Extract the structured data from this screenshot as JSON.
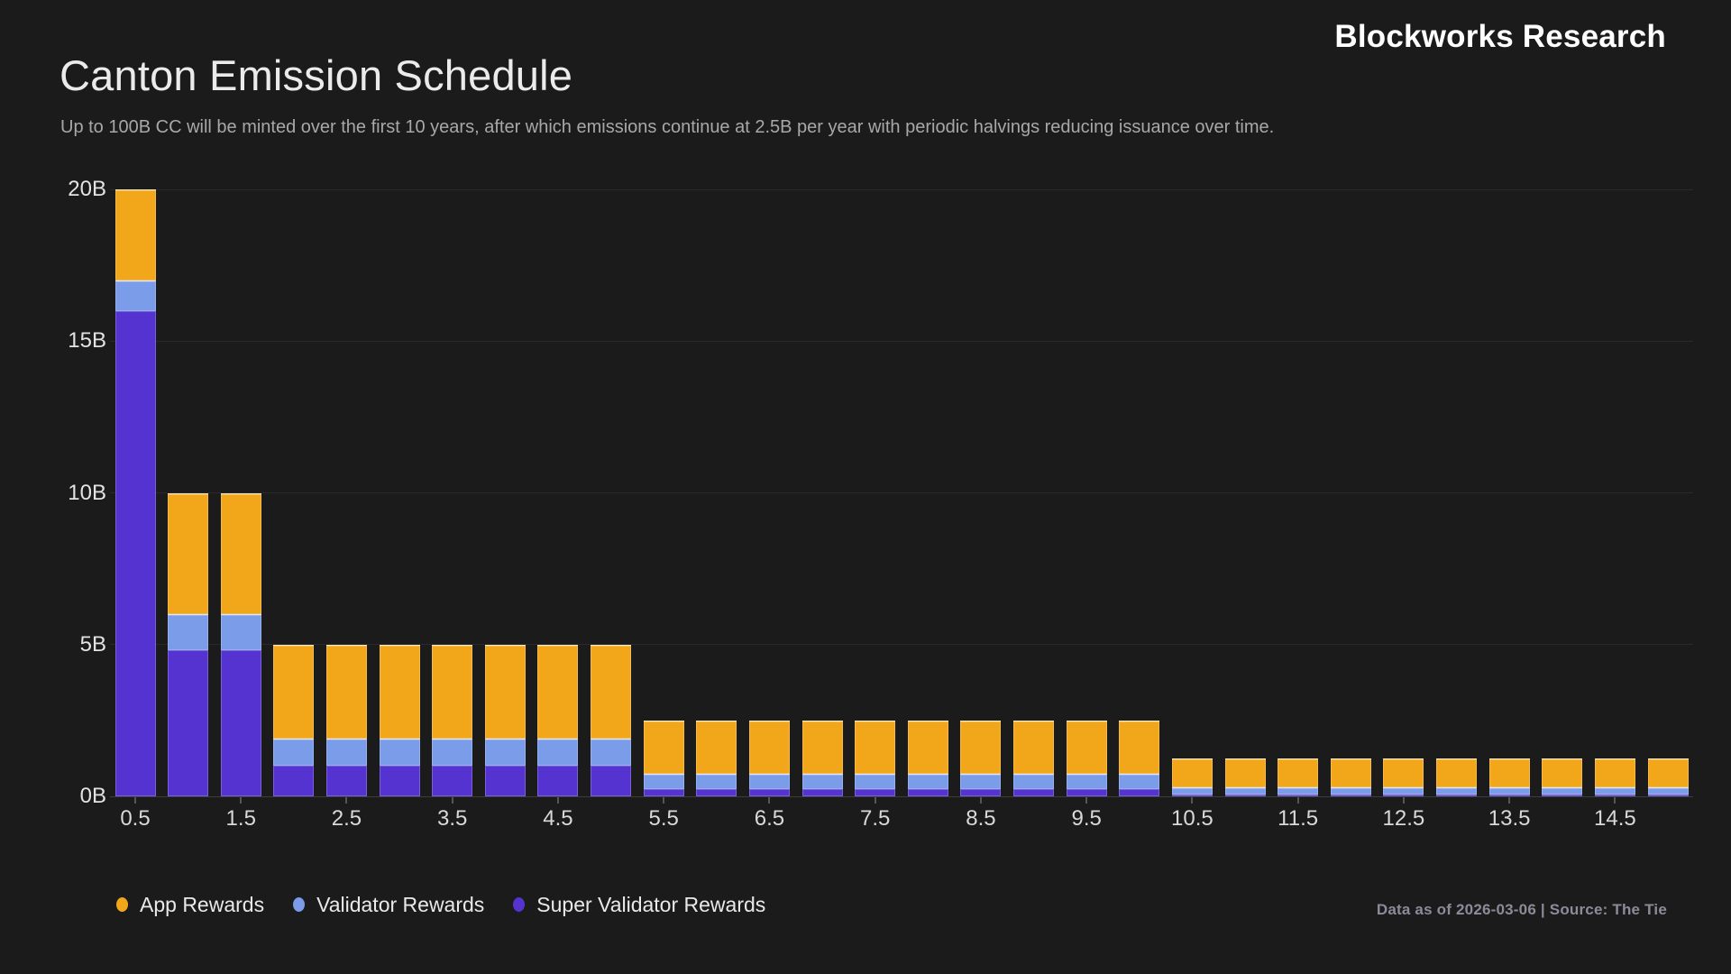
{
  "brand": "Blockworks Research",
  "header": {
    "title": "Canton Emission Schedule",
    "subtitle": "Up to 100B CC will be minted over the first 10 years, after which emissions continue at 2.5B per year with periodic halvings reducing issuance over time."
  },
  "footer": {
    "note": "Data as of 2026-03-06 | Source: The Tie"
  },
  "colors": {
    "background": "#1b1b1b",
    "app_rewards": "#f2a71b",
    "validator_rewards": "#7b9ce8",
    "super_validator_rewards": "#5533d1",
    "gridline": "#2a2a2a",
    "axis_line": "#3d3d3d"
  },
  "legend": [
    {
      "label": "App Rewards",
      "color": "#f2a71b"
    },
    {
      "label": "Validator Rewards",
      "color": "#7b9ce8"
    },
    {
      "label": "Super Validator Rewards",
      "color": "#5533d1"
    }
  ],
  "chart_data": {
    "type": "bar",
    "stacked": true,
    "title": "Canton Emission Schedule",
    "xlabel": "",
    "ylabel": "",
    "ylim": [
      0,
      20
    ],
    "grid": true,
    "legend_position": "bottom-left",
    "x": [
      0.5,
      1.0,
      1.5,
      2.0,
      2.5,
      3.0,
      3.5,
      4.0,
      4.5,
      5.0,
      5.5,
      6.0,
      6.5,
      7.0,
      7.5,
      8.0,
      8.5,
      9.0,
      9.5,
      10.0,
      10.5,
      11.0,
      11.5,
      12.0,
      12.5,
      13.0,
      13.5,
      14.0,
      14.5,
      15.0
    ],
    "xtick_labels": [
      "0.5",
      "1.5",
      "2.5",
      "3.5",
      "4.5",
      "5.5",
      "6.5",
      "7.5",
      "8.5",
      "9.5",
      "10.5",
      "11.5",
      "12.5",
      "13.5",
      "14.5"
    ],
    "yticks": [
      {
        "value": 0,
        "label": "0B"
      },
      {
        "value": 5,
        "label": "5B"
      },
      {
        "value": 10,
        "label": "10B"
      },
      {
        "value": 15,
        "label": "15B"
      },
      {
        "value": 20,
        "label": "20B"
      }
    ],
    "series": [
      {
        "name": "Super Validator Rewards",
        "color": "#5533d1",
        "values": [
          16,
          4.8,
          4.8,
          1,
          1,
          1,
          1,
          1,
          1,
          1,
          0.25,
          0.25,
          0.25,
          0.25,
          0.25,
          0.25,
          0.25,
          0.25,
          0.25,
          0.25,
          0.0625,
          0.0625,
          0.0625,
          0.0625,
          0.0625,
          0.0625,
          0.0625,
          0.0625,
          0.0625,
          0.0625
        ]
      },
      {
        "name": "Validator Rewards",
        "color": "#7b9ce8",
        "values": [
          1,
          1.2,
          1.2,
          0.9,
          0.9,
          0.9,
          0.9,
          0.9,
          0.9,
          0.9,
          0.5,
          0.5,
          0.5,
          0.5,
          0.5,
          0.5,
          0.5,
          0.5,
          0.5,
          0.5,
          0.25,
          0.25,
          0.25,
          0.25,
          0.25,
          0.25,
          0.25,
          0.25,
          0.25,
          0.25
        ]
      },
      {
        "name": "App Rewards",
        "color": "#f2a71b",
        "values": [
          3,
          4,
          4,
          3.1,
          3.1,
          3.1,
          3.1,
          3.1,
          3.1,
          3.1,
          1.75,
          1.75,
          1.75,
          1.75,
          1.75,
          1.75,
          1.75,
          1.75,
          1.75,
          1.75,
          0.9375,
          0.9375,
          0.9375,
          0.9375,
          0.9375,
          0.9375,
          0.9375,
          0.9375,
          0.9375,
          0.9375
        ]
      }
    ]
  }
}
